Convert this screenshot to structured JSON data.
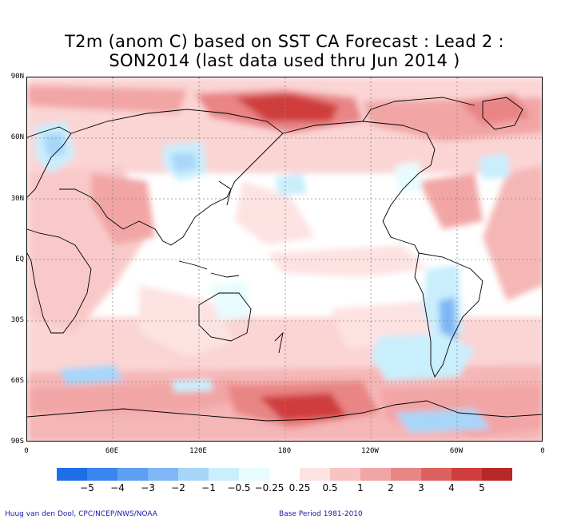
{
  "title_line1": "T2m (anom C) based on SST CA Forecast : Lead 2 :",
  "title_line2": "SON2014 (last data used thru Jun 2014 )",
  "lat_labels": [
    "90N",
    "60N",
    "30N",
    "EQ",
    "30S",
    "60S",
    "90S"
  ],
  "lon_labels": [
    "0",
    "60E",
    "120E",
    "180",
    "120W",
    "60W",
    "0"
  ],
  "colorbar": {
    "labels": [
      "−5",
      "−4",
      "−3",
      "−2",
      "−1",
      "−0.5",
      "−0.25",
      "0.25",
      "0.5",
      "1",
      "2",
      "3",
      "4",
      "5"
    ],
    "colors": [
      "#1e6ee8",
      "#3a86f0",
      "#5c9ff3",
      "#7eb6f6",
      "#a8d6f9",
      "#c9eefc",
      "#e8fbfe",
      "#ffffff",
      "#fde2e2",
      "#f8c3c3",
      "#f2a5a5",
      "#e98585",
      "#de6161",
      "#cf3d3d",
      "#b82828"
    ]
  },
  "footer_left": "Huug van den Dool, CPC/NCEP/NWS/NOAA",
  "footer_right": "Base Period 1981-2010"
}
